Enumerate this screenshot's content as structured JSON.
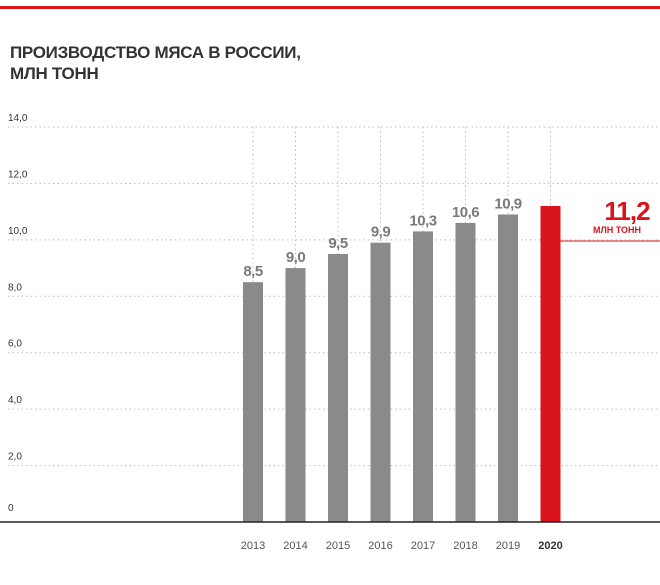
{
  "title_line1": "ПРОИЗВОДСТВО МЯСА В РОССИИ,",
  "title_line2": "МЛН ТОНН",
  "colors": {
    "accent": "#d9141c",
    "bar": "#8a8a8a",
    "label": "#7a7a7a",
    "text": "#333333",
    "grid": "#bdbdbd"
  },
  "highlight": {
    "value": "11,2",
    "unit": "МЛН ТОНН"
  },
  "chart_data": {
    "type": "bar",
    "title": "ПРОИЗВОДСТВО МЯСА В РОССИИ, МЛН ТОНН",
    "categories": [
      "2013",
      "2014",
      "2015",
      "2016",
      "2017",
      "2018",
      "2019",
      "2020"
    ],
    "values": [
      8.5,
      9.0,
      9.5,
      9.9,
      10.3,
      10.6,
      10.9,
      11.2
    ],
    "data_labels": [
      "8,5",
      "9,0",
      "9,5",
      "9,9",
      "10,3",
      "10,6",
      "10,9",
      "11,2"
    ],
    "highlighted_category": "2020",
    "yticks": [
      "0",
      "2,0",
      "4,0",
      "6,0",
      "8,0",
      "10,0",
      "12,0",
      "14,0"
    ],
    "ylim": [
      0,
      14
    ],
    "grid": "dotted",
    "xlabel": "",
    "ylabel": ""
  }
}
